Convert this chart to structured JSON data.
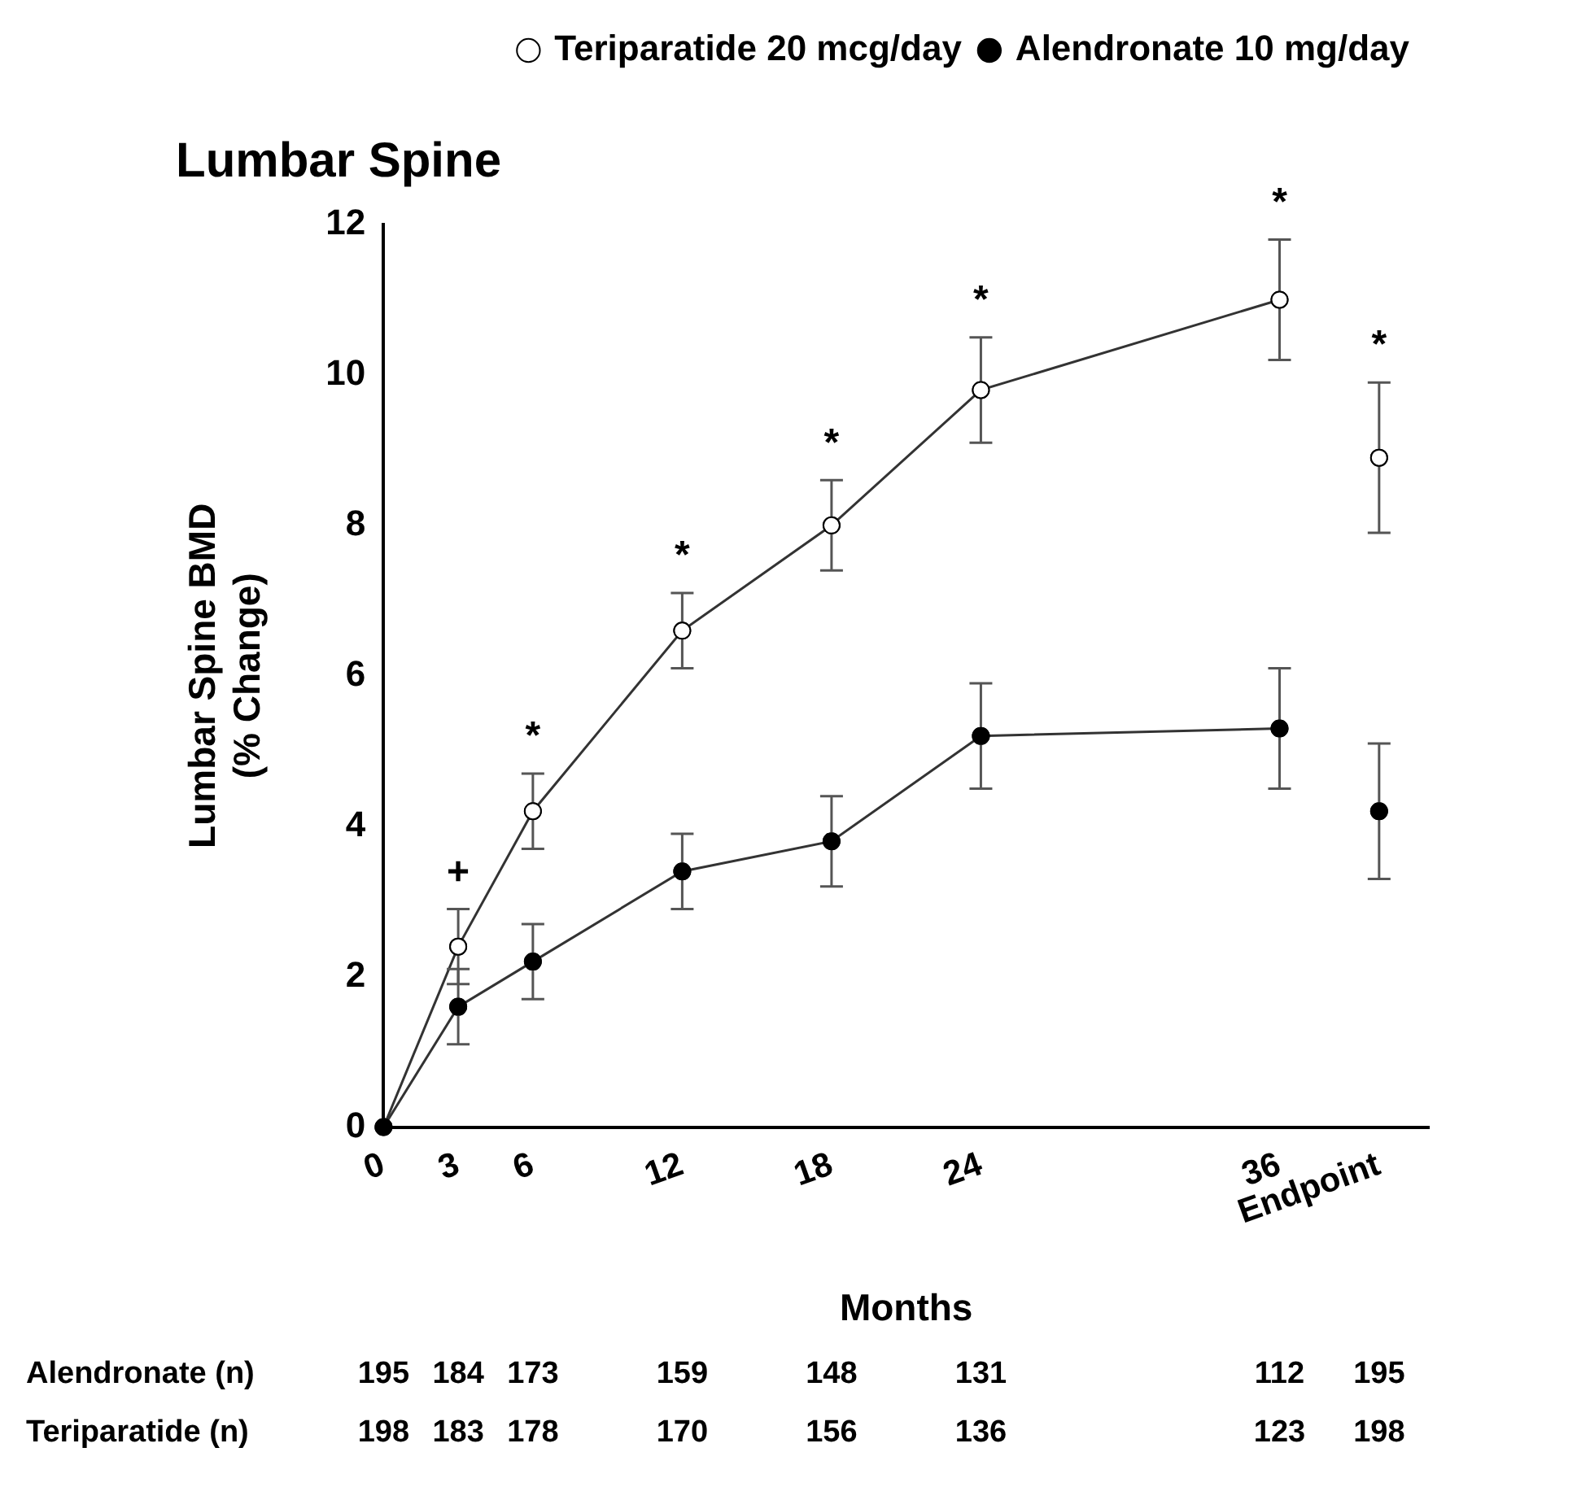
{
  "chart_data": {
    "type": "line",
    "title": "Lumbar Spine",
    "xlabel": "Months",
    "ylabel": "Lumbar Spine BMD\n(% Change)",
    "x": [
      0,
      3,
      6,
      12,
      18,
      24,
      36
    ],
    "series": [
      {
        "name": "Teriparatide 20 mcg/day",
        "color": "#ffffff",
        "values": [
          0,
          2.4,
          4.2,
          6.6,
          8.0,
          9.8,
          11.0
        ],
        "errors": [
          null,
          0.5,
          0.5,
          0.5,
          0.6,
          0.7,
          0.8
        ]
      },
      {
        "name": "Alendronate 10 mg/day",
        "color": "#000000",
        "values": [
          0,
          1.6,
          2.2,
          3.4,
          3.8,
          5.2,
          5.3
        ],
        "errors": [
          null,
          0.5,
          0.5,
          0.5,
          0.6,
          0.7,
          0.8
        ]
      },
      {
        "type": "scatter",
        "color": "#ffffff",
        "x": [
          40
        ],
        "values": [
          8.9
        ],
        "errors": [
          1.0
        ]
      },
      {
        "type": "scatter",
        "color": "#000000",
        "x": [
          40
        ],
        "values": [
          4.2
        ],
        "errors": [
          0.9
        ]
      }
    ],
    "xlim": [
      0,
      42
    ],
    "xticks": [
      0,
      3,
      6,
      12,
      18,
      24,
      36,
      {
        "value": 40,
        "label": "Endpoint"
      }
    ],
    "ylim": [
      0,
      12
    ],
    "yticks": [
      0,
      2,
      4,
      6,
      8,
      10,
      12
    ],
    "grid": false,
    "legend": "top right",
    "marker": "circle",
    "annotations": [
      "+",
      "*",
      "*",
      "*",
      "*",
      "*",
      "*",
      "Alendronate (n) 195 184 173 159 148 131 112 195",
      "Teriparatide (n) 198 183 178 170 156 136 123 198"
    ]
  }
}
